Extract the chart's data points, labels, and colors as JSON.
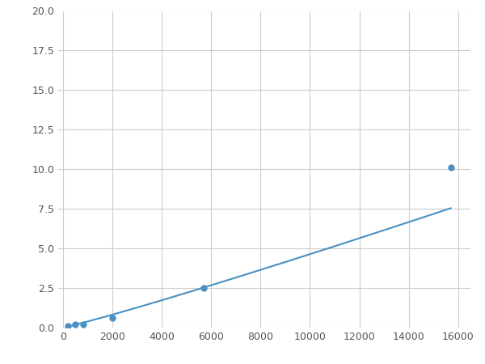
{
  "x": [
    200,
    500,
    800,
    2000,
    5700,
    15700
  ],
  "y": [
    0.1,
    0.2,
    0.2,
    0.6,
    2.5,
    10.1
  ],
  "line_color": "#4A90C4",
  "marker_color": "#4A90C4",
  "marker_size": 5,
  "xlim": [
    -200,
    16500
  ],
  "ylim": [
    0,
    20.0
  ],
  "xticks": [
    0,
    2000,
    4000,
    6000,
    8000,
    10000,
    12000,
    14000,
    16000
  ],
  "yticks": [
    0.0,
    2.5,
    5.0,
    7.5,
    10.0,
    12.5,
    15.0,
    17.5,
    20.0
  ],
  "grid": true,
  "background_color": "#ffffff",
  "line_width": 1.5,
  "figsize": [
    6.0,
    4.5
  ],
  "dpi": 100
}
